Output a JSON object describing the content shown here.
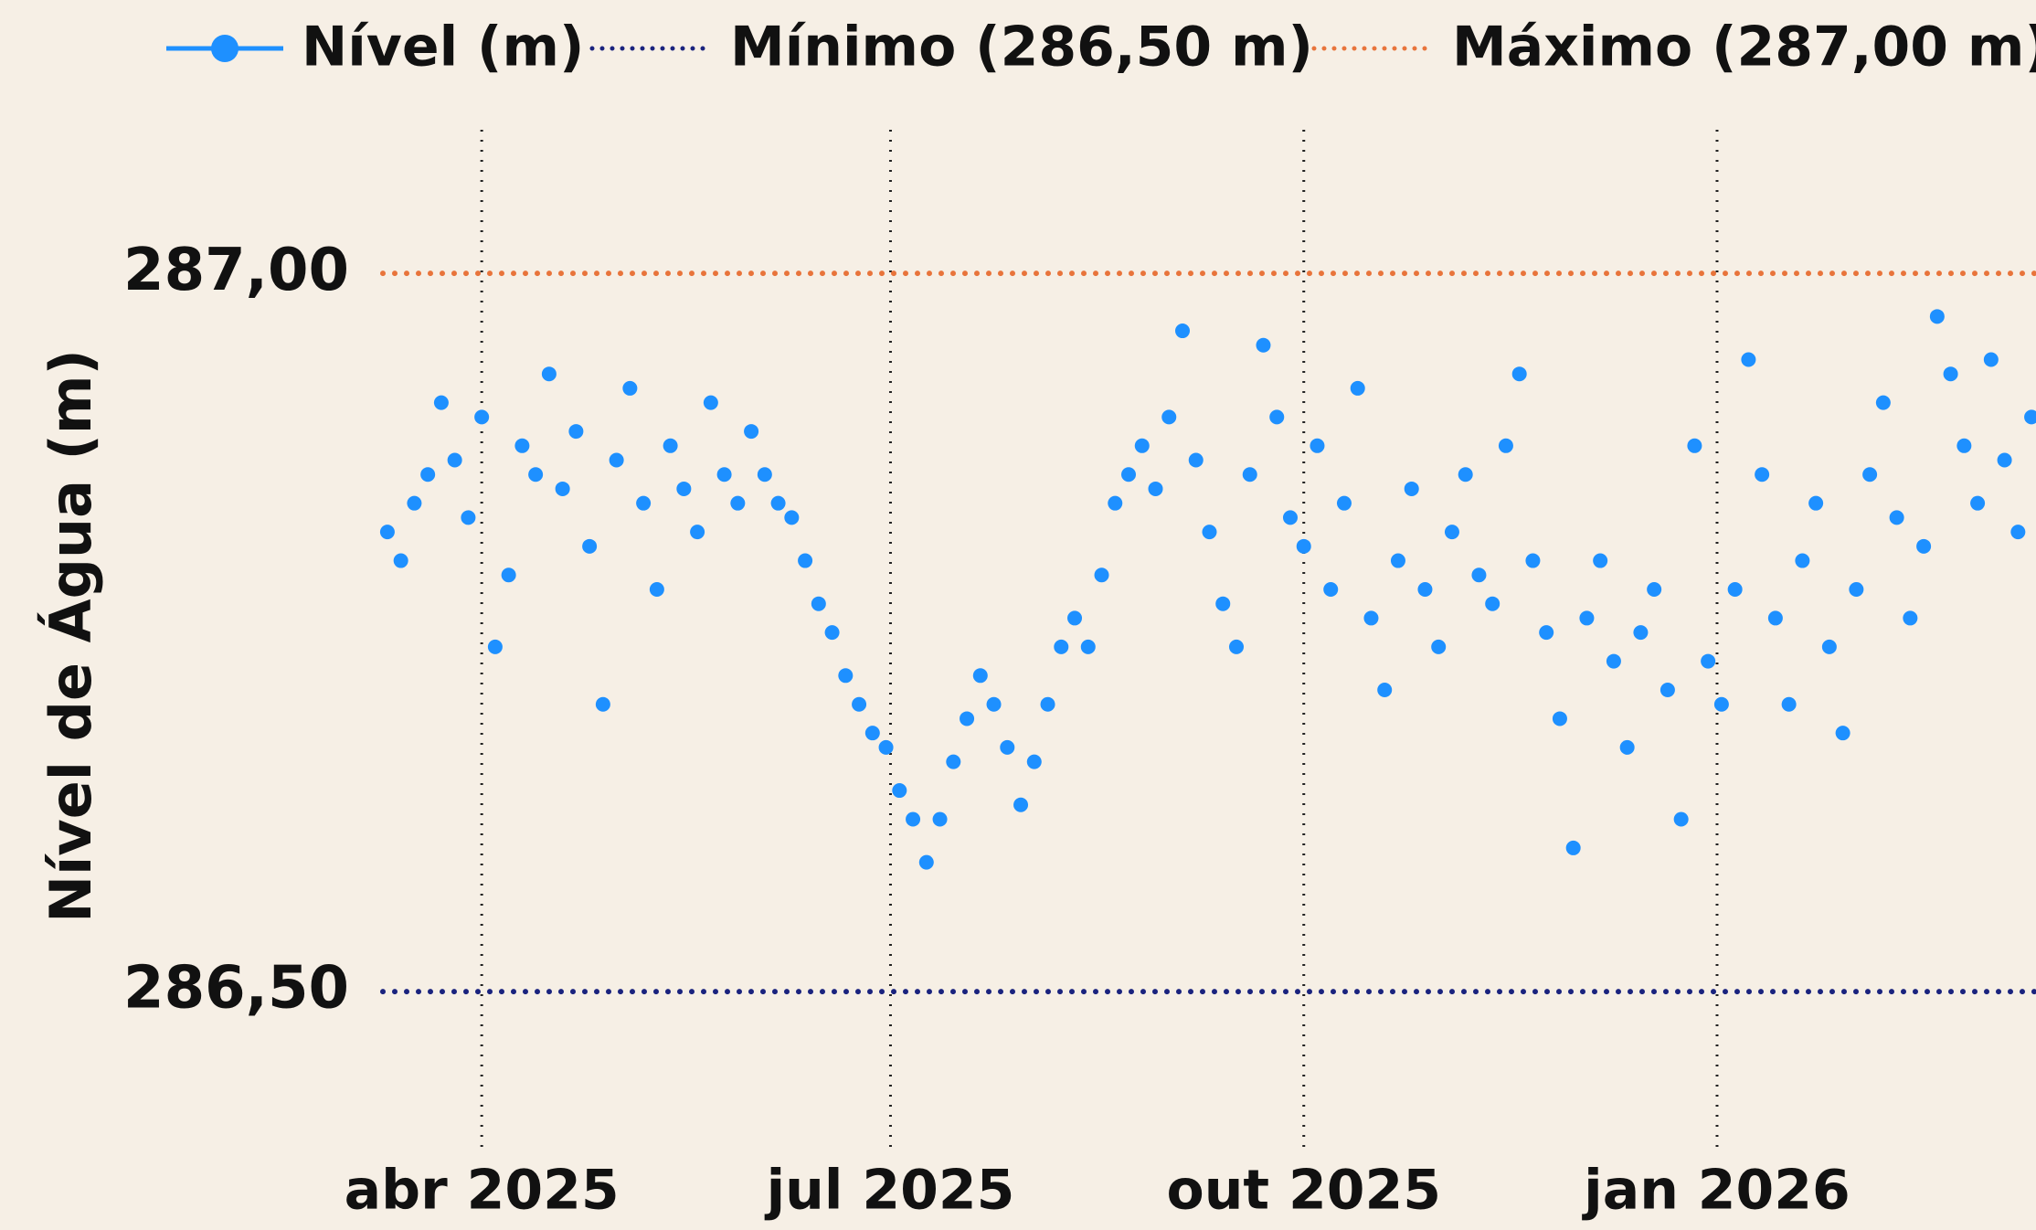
{
  "chart_data": {
    "type": "scatter",
    "y_label": "Nível de Água (m)",
    "x": [
      -21,
      -18,
      -15,
      -12,
      -9,
      -6,
      -3,
      0,
      3,
      6,
      9,
      12,
      15,
      18,
      21,
      24,
      27,
      30,
      33,
      36,
      39,
      42,
      45,
      48,
      51,
      54,
      57,
      60,
      63,
      66,
      69,
      72,
      75,
      78,
      81,
      84,
      87,
      90,
      93,
      96,
      99,
      102,
      105,
      108,
      111,
      114,
      117,
      120,
      123,
      126,
      129,
      132,
      135,
      138,
      141,
      144,
      147,
      150,
      153,
      156,
      159,
      162,
      165,
      168,
      171,
      174,
      177,
      180,
      183,
      186,
      189,
      192,
      195,
      198,
      201,
      204,
      207,
      210,
      213,
      216,
      219,
      222,
      225,
      228,
      231,
      234,
      237,
      240,
      243,
      246,
      249,
      252,
      255,
      258,
      261,
      264,
      267,
      270,
      273,
      276,
      279,
      282,
      285,
      288,
      291,
      294,
      297,
      300,
      303,
      306,
      309,
      312,
      315,
      318,
      321,
      324,
      327,
      330,
      333,
      336,
      339,
      342,
      345
    ],
    "series": [
      {
        "name": "Nível (m)",
        "color": "#1e90ff",
        "values": [
          286.82,
          286.8,
          286.84,
          286.86,
          286.91,
          286.87,
          286.83,
          286.9,
          286.74,
          286.79,
          286.88,
          286.86,
          286.93,
          286.85,
          286.89,
          286.81,
          286.7,
          286.87,
          286.92,
          286.84,
          286.78,
          286.88,
          286.85,
          286.82,
          286.91,
          286.86,
          286.84,
          286.89,
          286.86,
          286.84,
          286.83,
          286.8,
          286.77,
          286.75,
          286.72,
          286.7,
          286.68,
          286.67,
          286.64,
          286.62,
          286.59,
          286.62,
          286.66,
          286.69,
          286.72,
          286.7,
          286.67,
          286.63,
          286.66,
          286.7,
          286.74,
          286.76,
          286.74,
          286.79,
          286.84,
          286.86,
          286.88,
          286.85,
          286.9,
          286.96,
          286.87,
          286.82,
          286.77,
          286.74,
          286.86,
          286.95,
          286.9,
          286.83,
          286.81,
          286.88,
          286.78,
          286.84,
          286.92,
          286.76,
          286.71,
          286.8,
          286.85,
          286.78,
          286.74,
          286.82,
          286.86,
          286.79,
          286.77,
          286.88,
          286.93,
          286.8,
          286.75,
          286.69,
          286.6,
          286.76,
          286.8,
          286.73,
          286.67,
          286.75,
          286.78,
          286.71,
          286.62,
          286.88,
          286.73,
          286.7,
          286.78,
          286.94,
          286.86,
          286.76,
          286.7,
          286.8,
          286.84,
          286.74,
          286.68,
          286.78,
          286.86,
          286.91,
          286.83,
          286.76,
          286.81,
          286.97,
          286.93,
          286.88,
          286.84,
          286.94,
          286.87,
          286.82,
          286.9
        ]
      }
    ],
    "reference_lines": [
      {
        "name": "Mínimo (286,50 m)",
        "value": 286.5,
        "color": "#1a237e"
      },
      {
        "name": "Máximo (287,00 m)",
        "value": 287,
        "color": "#e8743b"
      }
    ],
    "xlim": [
      -22,
      346
    ],
    "xticks": [
      {
        "value": 0,
        "label": "abr 2025"
      },
      {
        "value": 91,
        "label": "jul 2025"
      },
      {
        "value": 183,
        "label": "out 2025"
      },
      {
        "value": 275,
        "label": "jan 2026"
      }
    ],
    "ylim": [
      286.39,
      287.1
    ],
    "yticks": [
      {
        "value": 286.5,
        "label": "286,50"
      },
      {
        "value": 287,
        "label": "287,00"
      }
    ],
    "grid_x": true
  }
}
